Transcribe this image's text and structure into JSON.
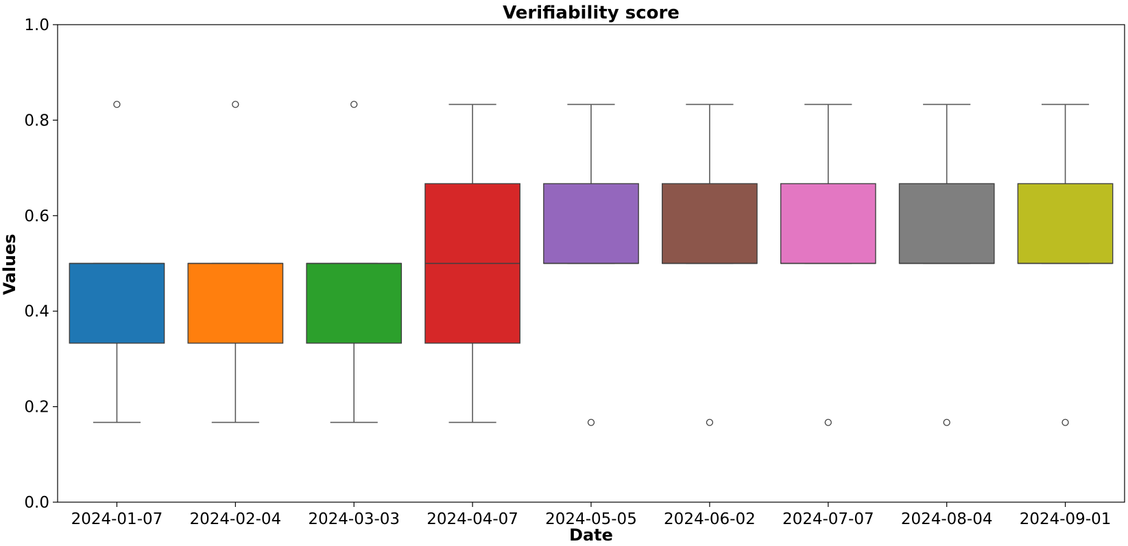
{
  "chart_data": {
    "type": "box",
    "title": "Verifiability score",
    "xlabel": "Date",
    "ylabel": "Values",
    "ylim": [
      0.0,
      1.0
    ],
    "yticks": [
      0.0,
      0.2,
      0.4,
      0.6,
      0.8,
      1.0
    ],
    "ytick_labels": [
      "0.0",
      "0.2",
      "0.4",
      "0.6",
      "0.8",
      "1.0"
    ],
    "grid": false,
    "legend": "none",
    "categories": [
      "2024-01-07",
      "2024-02-04",
      "2024-03-03",
      "2024-04-07",
      "2024-05-05",
      "2024-06-02",
      "2024-07-07",
      "2024-08-04",
      "2024-09-01"
    ],
    "colors": [
      "#1f77b4",
      "#ff7f0e",
      "#2ca02c",
      "#d62728",
      "#9467bd",
      "#8c564b",
      "#e377c2",
      "#7f7f7f",
      "#bcbd22"
    ],
    "boxes": [
      {
        "category": "2024-01-07",
        "whisker_low": 0.167,
        "q1": 0.333,
        "median": 0.5,
        "q3": 0.5,
        "whisker_high": 0.5,
        "fliers": [
          0.833
        ]
      },
      {
        "category": "2024-02-04",
        "whisker_low": 0.167,
        "q1": 0.333,
        "median": 0.5,
        "q3": 0.5,
        "whisker_high": 0.5,
        "fliers": [
          0.833
        ]
      },
      {
        "category": "2024-03-03",
        "whisker_low": 0.167,
        "q1": 0.333,
        "median": 0.5,
        "q3": 0.5,
        "whisker_high": 0.5,
        "fliers": [
          0.833
        ]
      },
      {
        "category": "2024-04-07",
        "whisker_low": 0.167,
        "q1": 0.333,
        "median": 0.5,
        "q3": 0.667,
        "whisker_high": 0.833,
        "fliers": []
      },
      {
        "category": "2024-05-05",
        "whisker_low": 0.5,
        "q1": 0.5,
        "median": 0.5,
        "q3": 0.667,
        "whisker_high": 0.833,
        "fliers": [
          0.167
        ]
      },
      {
        "category": "2024-06-02",
        "whisker_low": 0.5,
        "q1": 0.5,
        "median": 0.5,
        "q3": 0.667,
        "whisker_high": 0.833,
        "fliers": [
          0.167
        ]
      },
      {
        "category": "2024-07-07",
        "whisker_low": 0.5,
        "q1": 0.5,
        "median": 0.5,
        "q3": 0.667,
        "whisker_high": 0.833,
        "fliers": [
          0.167
        ]
      },
      {
        "category": "2024-08-04",
        "whisker_low": 0.5,
        "q1": 0.5,
        "median": 0.5,
        "q3": 0.667,
        "whisker_high": 0.833,
        "fliers": [
          0.167
        ]
      },
      {
        "category": "2024-09-01",
        "whisker_low": 0.5,
        "q1": 0.5,
        "median": 0.5,
        "q3": 0.667,
        "whisker_high": 0.833,
        "fliers": [
          0.167
        ]
      }
    ]
  }
}
